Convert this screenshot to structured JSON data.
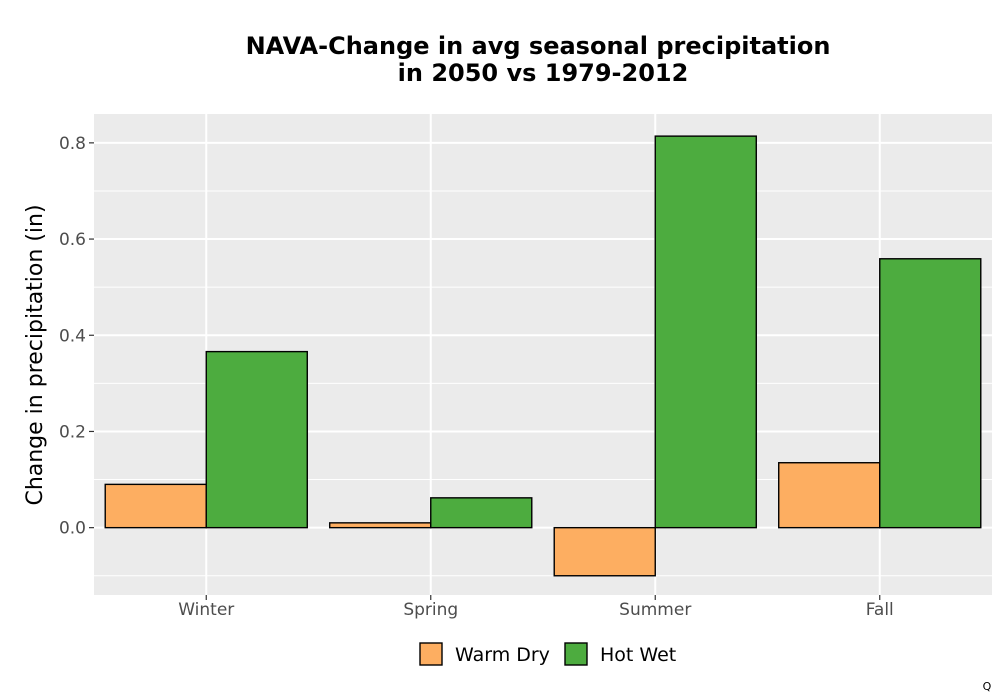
{
  "chart_data": {
    "type": "bar",
    "title_lines": [
      "NAVA-Change in avg seasonal precipitation",
      "in 2050 vs 1979-2012"
    ],
    "xlabel": "",
    "ylabel": "Change in precipitation (in)",
    "categories": [
      "Winter",
      "Spring",
      "Summer",
      "Fall"
    ],
    "series": [
      {
        "name": "Warm Dry",
        "color": "#FDAE61",
        "values": [
          0.09,
          0.01,
          -0.1,
          0.135
        ]
      },
      {
        "name": "Hot Wet",
        "color": "#4DAC3F",
        "values": [
          0.366,
          0.062,
          0.814,
          0.559
        ]
      }
    ],
    "ylim": [
      -0.14,
      0.86
    ],
    "yticks": [
      0.0,
      0.2,
      0.4,
      0.6,
      0.8
    ],
    "ytick_labels": [
      "0.0",
      "0.2",
      "0.4",
      "0.6",
      "0.8"
    ],
    "grid": true,
    "legend_position": "bottom",
    "panel_background": "#EBEBEB",
    "grid_color": "#FFFFFF"
  },
  "corner_mark": "Q"
}
